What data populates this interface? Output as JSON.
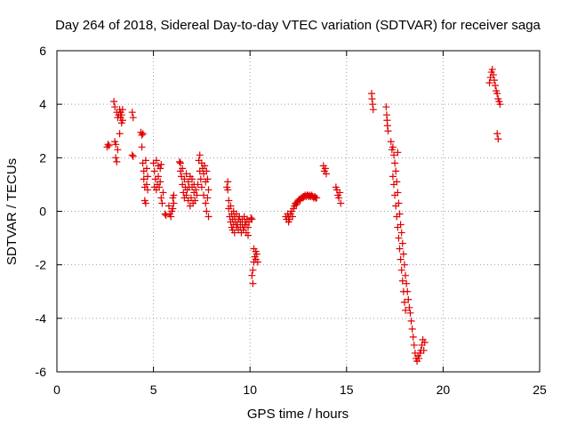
{
  "chart_data": {
    "type": "scatter",
    "title": "Day 264 of 2018, Sidereal Day-to-day VTEC variation (SDTVAR) for receiver saga",
    "xlabel": "GPS time / hours",
    "ylabel": "SDTVAR / TECUs",
    "xlim": [
      0,
      25
    ],
    "ylim": [
      -6,
      6
    ],
    "xticks": [
      0,
      5,
      10,
      15,
      20,
      25
    ],
    "yticks": [
      -6,
      -4,
      -2,
      0,
      2,
      4,
      6
    ],
    "xtick_labels": [
      "0",
      "5",
      "10",
      "15",
      "20",
      "25"
    ],
    "ytick_labels": [
      "-6",
      "-4",
      "-2",
      "0",
      "2",
      "4",
      "6"
    ],
    "grid": true,
    "marker": "+",
    "color": "#e00000",
    "series": [
      {
        "name": "SDTVAR",
        "points": [
          [
            2.6,
            2.4
          ],
          [
            2.65,
            2.5
          ],
          [
            2.7,
            2.45
          ],
          [
            2.95,
            4.1
          ],
          [
            3.0,
            3.9
          ],
          [
            3.0,
            2.6
          ],
          [
            3.05,
            2.5
          ],
          [
            3.05,
            2.0
          ],
          [
            3.1,
            1.85
          ],
          [
            3.1,
            3.7
          ],
          [
            3.15,
            3.5
          ],
          [
            3.15,
            2.3
          ],
          [
            3.2,
            3.6
          ],
          [
            3.25,
            3.8
          ],
          [
            3.25,
            2.9
          ],
          [
            3.3,
            3.7
          ],
          [
            3.3,
            3.5
          ],
          [
            3.35,
            3.3
          ],
          [
            3.35,
            3.6
          ],
          [
            3.4,
            3.8
          ],
          [
            3.4,
            3.4
          ],
          [
            3.9,
            3.7
          ],
          [
            3.95,
            3.5
          ],
          [
            3.9,
            2.1
          ],
          [
            3.95,
            2.05
          ],
          [
            4.35,
            2.95
          ],
          [
            4.4,
            2.85
          ],
          [
            4.45,
            2.9
          ],
          [
            4.4,
            2.4
          ],
          [
            4.45,
            1.8
          ],
          [
            4.5,
            1.5
          ],
          [
            4.5,
            1.2
          ],
          [
            4.55,
            0.9
          ],
          [
            4.55,
            0.4
          ],
          [
            4.6,
            0.3
          ],
          [
            4.6,
            1.9
          ],
          [
            4.65,
            1.0
          ],
          [
            4.65,
            1.6
          ],
          [
            4.7,
            0.8
          ],
          [
            4.7,
            1.3
          ],
          [
            5.0,
            1.8
          ],
          [
            5.05,
            1.5
          ],
          [
            5.05,
            0.9
          ],
          [
            5.1,
            1.2
          ],
          [
            5.15,
            1.9
          ],
          [
            5.15,
            0.8
          ],
          [
            5.2,
            1.0
          ],
          [
            5.25,
            1.7
          ],
          [
            5.25,
            1.3
          ],
          [
            5.3,
            0.9
          ],
          [
            5.35,
            1.6
          ],
          [
            5.35,
            1.1
          ],
          [
            5.4,
            0.5
          ],
          [
            5.4,
            1.75
          ],
          [
            5.45,
            0.3
          ],
          [
            5.5,
            0.7
          ],
          [
            5.6,
            -0.1
          ],
          [
            5.65,
            -0.15
          ],
          [
            5.8,
            0.2
          ],
          [
            5.85,
            -0.1
          ],
          [
            5.9,
            -0.2
          ],
          [
            5.95,
            0.0
          ],
          [
            6.0,
            0.1
          ],
          [
            6.0,
            0.5
          ],
          [
            6.05,
            0.3
          ],
          [
            6.05,
            0.6
          ],
          [
            6.35,
            1.85
          ],
          [
            6.4,
            1.8
          ],
          [
            6.4,
            1.5
          ],
          [
            6.45,
            1.3
          ],
          [
            6.5,
            1.0
          ],
          [
            6.5,
            1.6
          ],
          [
            6.55,
            0.7
          ],
          [
            6.6,
            0.5
          ],
          [
            6.6,
            1.2
          ],
          [
            6.65,
            0.9
          ],
          [
            6.7,
            0.6
          ],
          [
            6.7,
            1.4
          ],
          [
            6.75,
            0.8
          ],
          [
            6.8,
            1.1
          ],
          [
            6.8,
            0.4
          ],
          [
            6.85,
            0.9
          ],
          [
            6.9,
            1.3
          ],
          [
            6.9,
            0.2
          ],
          [
            6.95,
            0.5
          ],
          [
            7.0,
            0.9
          ],
          [
            7.0,
            1.2
          ],
          [
            7.05,
            0.3
          ],
          [
            7.1,
            0.7
          ],
          [
            7.1,
            1.0
          ],
          [
            7.15,
            0.4
          ],
          [
            7.2,
            0.8
          ],
          [
            7.25,
            0.6
          ],
          [
            7.3,
            1.0
          ],
          [
            7.35,
            1.9
          ],
          [
            7.4,
            2.1
          ],
          [
            7.4,
            1.5
          ],
          [
            7.45,
            1.2
          ],
          [
            7.5,
            1.8
          ],
          [
            7.5,
            0.9
          ],
          [
            7.55,
            1.6
          ],
          [
            7.6,
            0.6
          ],
          [
            7.6,
            1.4
          ],
          [
            7.65,
            1.7
          ],
          [
            7.7,
            0.3
          ],
          [
            7.7,
            1.1
          ],
          [
            7.75,
            1.5
          ],
          [
            7.75,
            0.0
          ],
          [
            7.8,
            0.5
          ],
          [
            7.8,
            1.2
          ],
          [
            7.85,
            -0.2
          ],
          [
            7.85,
            0.8
          ],
          [
            8.8,
            0.9
          ],
          [
            8.85,
            1.1
          ],
          [
            8.85,
            0.8
          ],
          [
            8.9,
            0.4
          ],
          [
            8.9,
            0.1
          ],
          [
            8.95,
            -0.2
          ],
          [
            9.0,
            -0.4
          ],
          [
            9.0,
            0.2
          ],
          [
            9.05,
            -0.6
          ],
          [
            9.05,
            -0.1
          ],
          [
            9.1,
            -0.3
          ],
          [
            9.1,
            -0.7
          ],
          [
            9.15,
            -0.5
          ],
          [
            9.15,
            0.0
          ],
          [
            9.2,
            -0.2
          ],
          [
            9.2,
            -0.8
          ],
          [
            9.25,
            -0.4
          ],
          [
            9.3,
            -0.6
          ],
          [
            9.3,
            -0.1
          ],
          [
            9.35,
            -0.5
          ],
          [
            9.4,
            -0.3
          ],
          [
            9.4,
            -0.7
          ],
          [
            9.45,
            -0.2
          ],
          [
            9.5,
            -0.6
          ],
          [
            9.5,
            -0.4
          ],
          [
            9.55,
            -0.8
          ],
          [
            9.6,
            -0.3
          ],
          [
            9.6,
            -0.5
          ],
          [
            9.65,
            -0.7
          ],
          [
            9.7,
            -0.2
          ],
          [
            9.7,
            -0.6
          ],
          [
            9.75,
            -0.4
          ],
          [
            9.8,
            -0.5
          ],
          [
            9.8,
            -0.8
          ],
          [
            9.85,
            -0.3
          ],
          [
            9.9,
            -0.6
          ],
          [
            9.9,
            -0.9
          ],
          [
            9.95,
            -0.4
          ],
          [
            10.05,
            -0.25
          ],
          [
            10.1,
            -0.3
          ],
          [
            10.1,
            -2.4
          ],
          [
            10.15,
            -2.7
          ],
          [
            10.15,
            -2.2
          ],
          [
            10.2,
            -1.9
          ],
          [
            10.2,
            -1.4
          ],
          [
            10.25,
            -1.7
          ],
          [
            10.3,
            -1.5
          ],
          [
            10.3,
            -1.8
          ],
          [
            10.35,
            -1.6
          ],
          [
            10.4,
            -1.9
          ],
          [
            11.85,
            -0.2
          ],
          [
            11.9,
            -0.3
          ],
          [
            11.95,
            -0.1
          ],
          [
            12.0,
            -0.4
          ],
          [
            12.0,
            -0.2
          ],
          [
            12.05,
            -0.3
          ],
          [
            12.1,
            -0.1
          ],
          [
            12.15,
            0.0
          ],
          [
            12.2,
            -0.2
          ],
          [
            12.25,
            0.1
          ],
          [
            12.3,
            0.2
          ],
          [
            12.35,
            0.3
          ],
          [
            12.4,
            0.25
          ],
          [
            12.45,
            0.35
          ],
          [
            12.5,
            0.4
          ],
          [
            12.55,
            0.45
          ],
          [
            12.6,
            0.4
          ],
          [
            12.65,
            0.5
          ],
          [
            12.7,
            0.5
          ],
          [
            12.75,
            0.55
          ],
          [
            12.8,
            0.55
          ],
          [
            12.85,
            0.6
          ],
          [
            12.9,
            0.55
          ],
          [
            12.95,
            0.6
          ],
          [
            13.0,
            0.6
          ],
          [
            13.05,
            0.55
          ],
          [
            13.1,
            0.6
          ],
          [
            13.15,
            0.55
          ],
          [
            13.2,
            0.6
          ],
          [
            13.25,
            0.55
          ],
          [
            13.3,
            0.5
          ],
          [
            13.35,
            0.55
          ],
          [
            13.4,
            0.5
          ],
          [
            13.45,
            0.5
          ],
          [
            13.8,
            1.7
          ],
          [
            13.85,
            1.5
          ],
          [
            13.9,
            1.6
          ],
          [
            13.95,
            1.4
          ],
          [
            14.45,
            0.9
          ],
          [
            14.5,
            0.8
          ],
          [
            14.55,
            0.6
          ],
          [
            14.6,
            0.5
          ],
          [
            14.65,
            0.7
          ],
          [
            14.7,
            0.3
          ],
          [
            16.3,
            4.4
          ],
          [
            16.32,
            4.2
          ],
          [
            16.35,
            4.0
          ],
          [
            16.38,
            3.8
          ],
          [
            17.05,
            3.9
          ],
          [
            17.08,
            3.6
          ],
          [
            17.1,
            3.4
          ],
          [
            17.12,
            3.2
          ],
          [
            17.15,
            3.0
          ],
          [
            17.3,
            2.6
          ],
          [
            17.35,
            2.3
          ],
          [
            17.4,
            2.4
          ],
          [
            17.45,
            2.1
          ],
          [
            17.5,
            1.8
          ],
          [
            17.55,
            1.5
          ],
          [
            17.6,
            1.1
          ],
          [
            17.65,
            0.7
          ],
          [
            17.65,
            2.2
          ],
          [
            17.7,
            0.3
          ],
          [
            17.75,
            -0.1
          ],
          [
            17.8,
            -0.5
          ],
          [
            17.85,
            -0.8
          ],
          [
            17.9,
            -1.2
          ],
          [
            17.95,
            -1.6
          ],
          [
            18.0,
            -2.0
          ],
          [
            18.05,
            -2.4
          ],
          [
            18.1,
            -2.7
          ],
          [
            18.15,
            -3.0
          ],
          [
            18.2,
            -3.3
          ],
          [
            18.25,
            -3.6
          ],
          [
            18.3,
            -3.8
          ],
          [
            18.35,
            -4.1
          ],
          [
            18.4,
            -4.4
          ],
          [
            18.45,
            -4.7
          ],
          [
            18.5,
            -5.0
          ],
          [
            18.55,
            -5.3
          ],
          [
            18.6,
            -5.5
          ],
          [
            18.65,
            -5.6
          ],
          [
            18.7,
            -5.4
          ],
          [
            18.75,
            -5.5
          ],
          [
            18.8,
            -5.3
          ],
          [
            18.85,
            -5.2
          ],
          [
            18.9,
            -5.0
          ],
          [
            18.95,
            -4.8
          ],
          [
            19.0,
            -5.2
          ],
          [
            19.05,
            -4.9
          ],
          [
            17.4,
            1.3
          ],
          [
            17.45,
            1.0
          ],
          [
            17.5,
            0.6
          ],
          [
            17.55,
            0.2
          ],
          [
            17.6,
            -0.2
          ],
          [
            17.65,
            -0.6
          ],
          [
            17.7,
            -1.0
          ],
          [
            17.75,
            -1.4
          ],
          [
            17.8,
            -1.8
          ],
          [
            17.85,
            -2.2
          ],
          [
            17.9,
            -2.6
          ],
          [
            17.95,
            -3.0
          ],
          [
            18.0,
            -3.4
          ],
          [
            18.05,
            -3.7
          ],
          [
            22.4,
            4.8
          ],
          [
            22.45,
            5.0
          ],
          [
            22.5,
            5.2
          ],
          [
            22.55,
            5.3
          ],
          [
            22.6,
            5.1
          ],
          [
            22.65,
            4.9
          ],
          [
            22.7,
            4.7
          ],
          [
            22.75,
            4.5
          ],
          [
            22.8,
            4.4
          ],
          [
            22.85,
            4.2
          ],
          [
            22.9,
            4.1
          ],
          [
            22.95,
            4.0
          ],
          [
            22.8,
            2.9
          ],
          [
            22.85,
            2.7
          ]
        ]
      }
    ]
  }
}
